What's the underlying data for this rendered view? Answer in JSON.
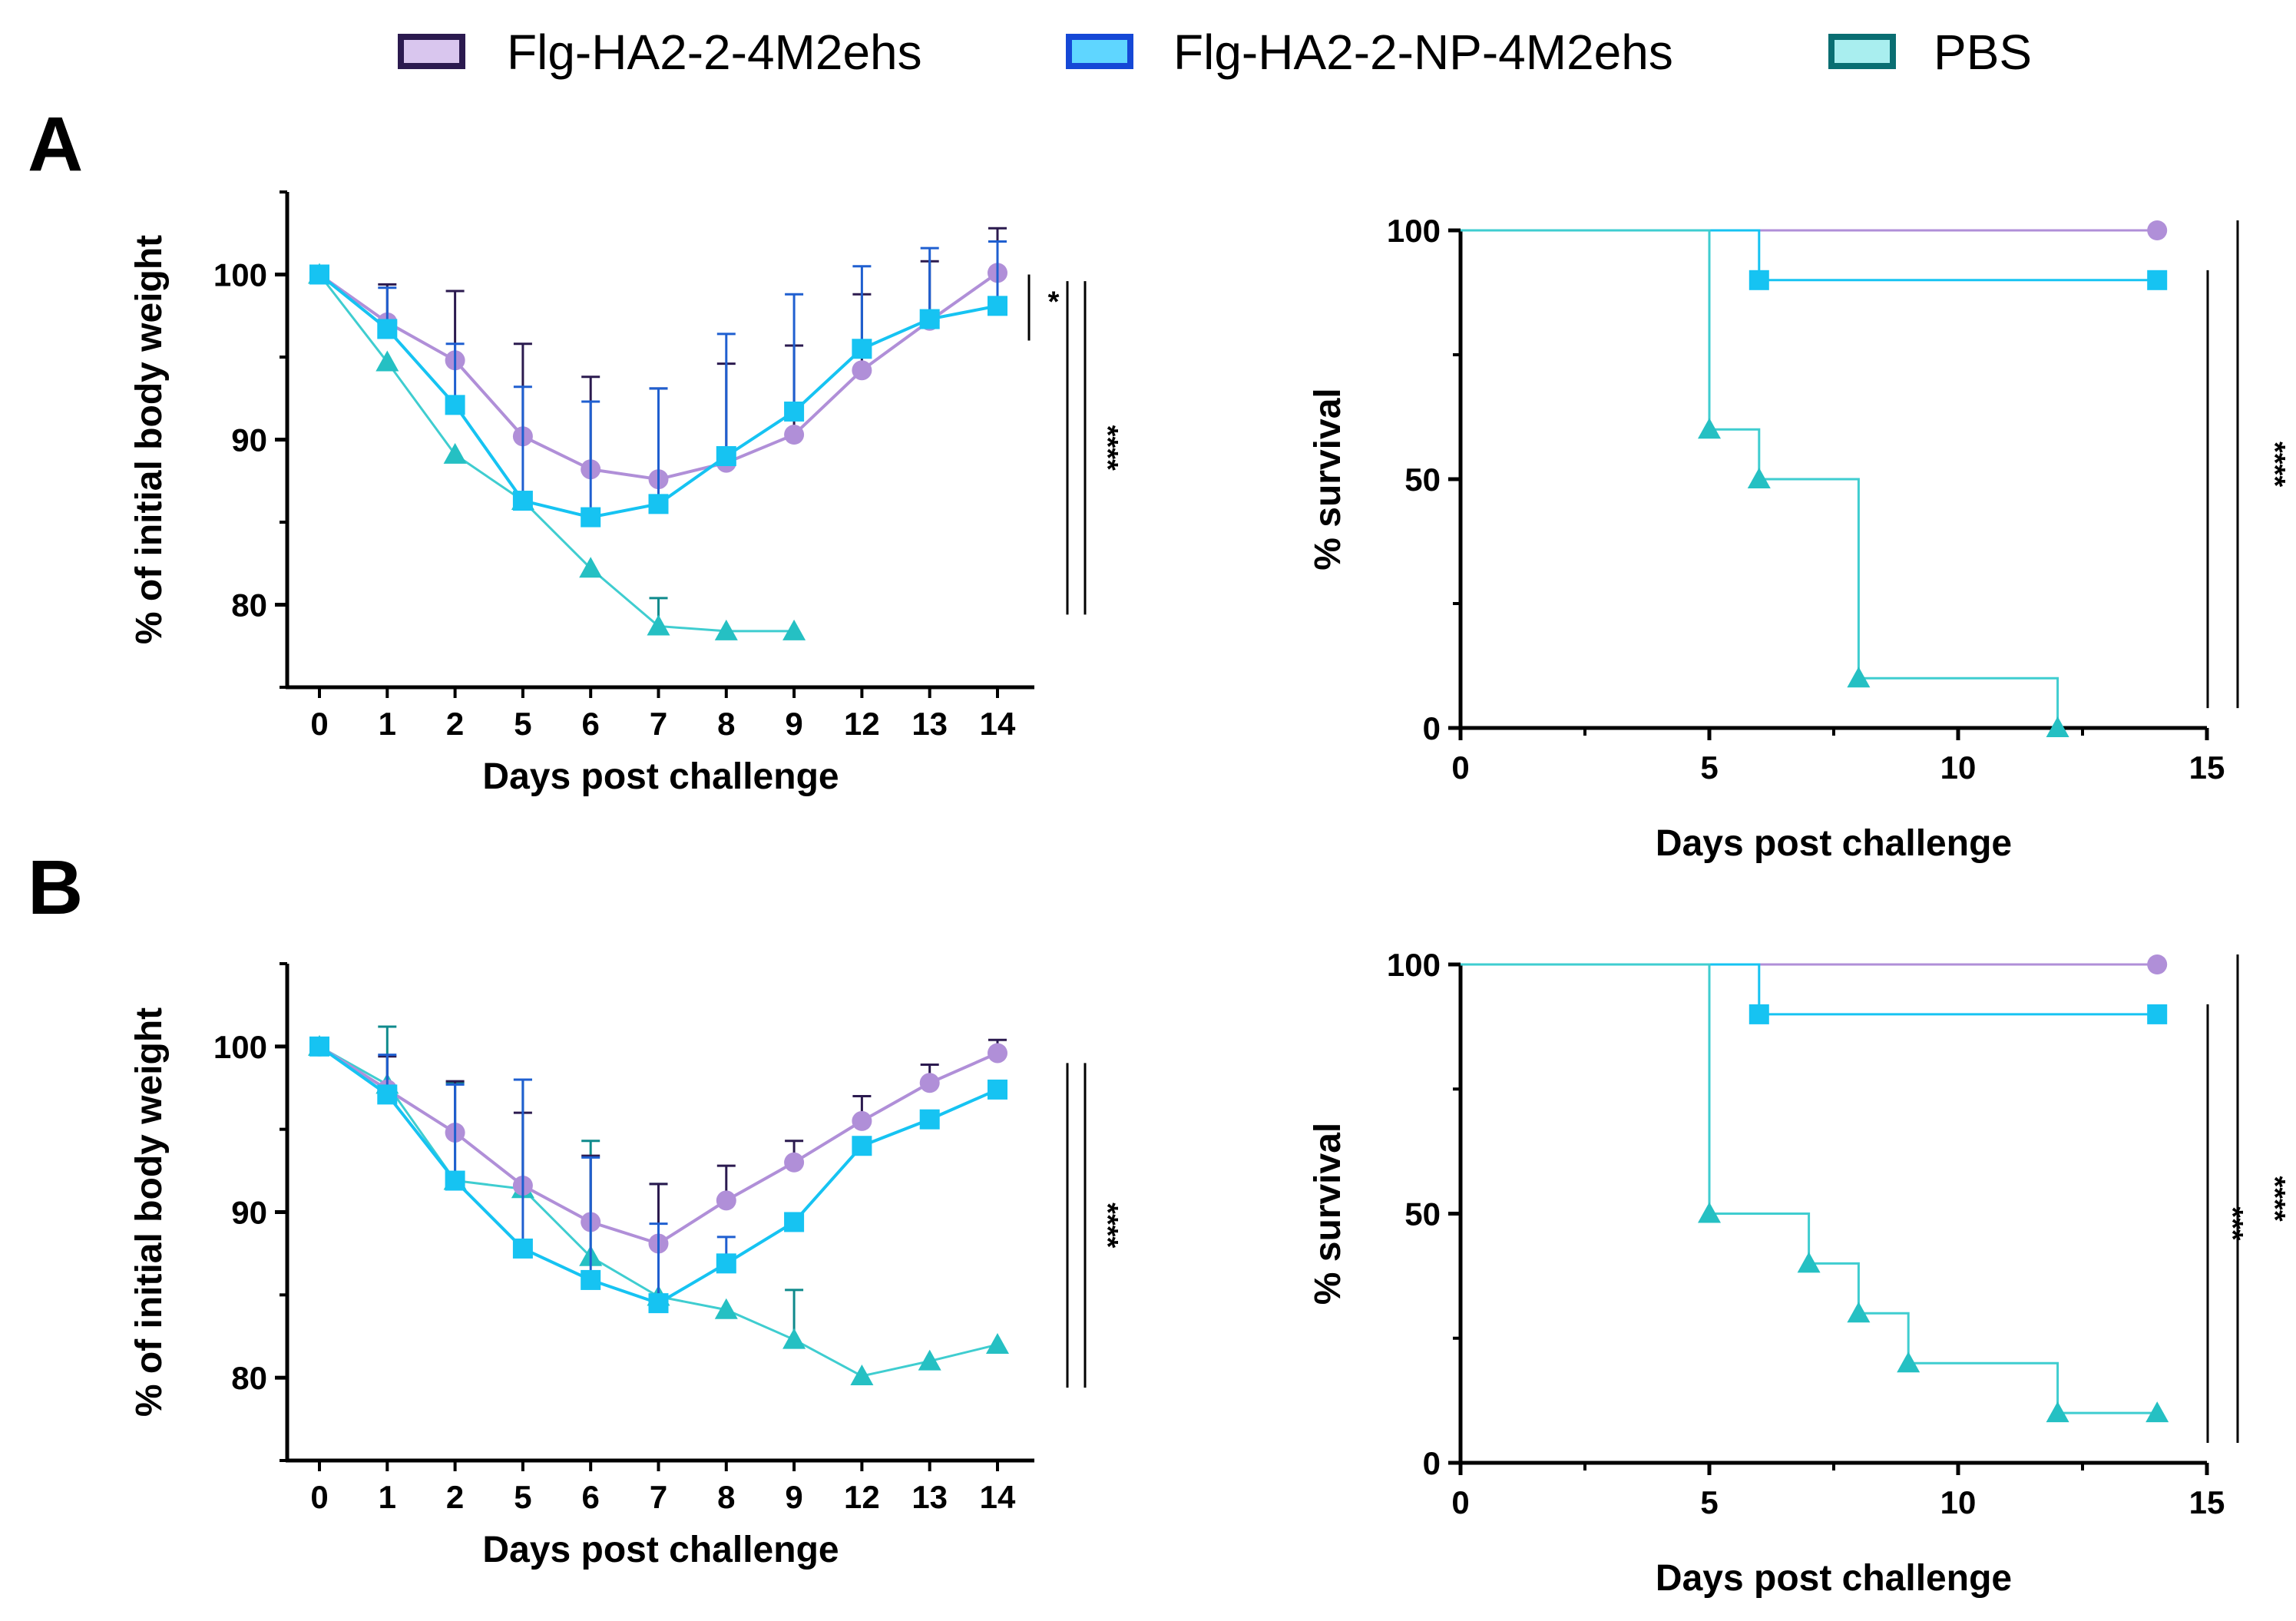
{
  "legend": [
    {
      "label": "Flg-HA2-2-4M2ehs",
      "series": "ha2"
    },
    {
      "label": "Flg-HA2-2-NP-4M2ehs",
      "series": "np"
    },
    {
      "label": "PBS",
      "series": "pbs"
    }
  ],
  "colors": {
    "ha2_line": "#b08fd8",
    "ha2_marker": "#b08fd8",
    "ha2_err": "#2b1a4f",
    "ha2_legend_fill": "#d9c6ee",
    "ha2_legend_border": "#2b1a4f",
    "np_line": "#16c3f2",
    "np_marker": "#16c3f2",
    "np_err": "#1f5fd0",
    "np_legend_fill": "#5fd6ff",
    "np_legend_border": "#1548d6",
    "pbs_line": "#3fcdd0",
    "pbs_marker": "#25c0c3",
    "pbs_err": "#0f8a8c",
    "pbs_legend_fill": "#a9eeef",
    "pbs_legend_border": "#0a6e72"
  },
  "panels": [
    {
      "letter": "A"
    },
    {
      "letter": "B"
    }
  ],
  "chart_data": [
    {
      "id": "A-weight",
      "panel": "A",
      "type": "line",
      "xlabel": "Days post challenge",
      "ylabel": "% of initial body weight",
      "ylim": [
        75,
        105
      ],
      "yticks": [
        80,
        90,
        100
      ],
      "categories": [
        "0",
        "1",
        "2",
        "5",
        "6",
        "7",
        "8",
        "9",
        "12",
        "13",
        "14"
      ],
      "series": [
        {
          "key": "ha2",
          "name": "Flg-HA2-2-4M2ehs",
          "marker": "circle",
          "values": [
            100,
            97.1,
            94.8,
            90.2,
            88.2,
            87.6,
            88.6,
            90.3,
            94.2,
            97.2,
            100.1
          ],
          "errors": [
            0,
            2.3,
            4.2,
            5.6,
            5.6,
            5.5,
            6.0,
            5.4,
            4.6,
            3.6,
            2.7
          ]
        },
        {
          "key": "np",
          "name": "Flg-HA2-2-NP-4M2ehs",
          "marker": "square",
          "values": [
            100,
            96.7,
            92.1,
            86.3,
            85.3,
            86.1,
            89.0,
            91.7,
            95.5,
            97.3,
            98.1
          ],
          "errors": [
            0,
            2.5,
            3.7,
            6.9,
            7.0,
            7.0,
            7.4,
            7.1,
            5.0,
            4.3,
            3.9
          ]
        },
        {
          "key": "pbs",
          "name": "PBS",
          "marker": "triangle",
          "values": [
            100,
            94.7,
            89.1,
            86.3,
            82.2,
            78.7,
            78.4,
            78.4,
            null,
            null,
            null
          ],
          "errors": [
            0,
            0,
            0,
            0,
            0,
            1.7,
            0,
            0,
            0,
            0,
            0
          ]
        }
      ],
      "significance": [
        {
          "label": "*",
          "from": 100,
          "to": 96
        },
        {
          "label": "****",
          "from": 99.6,
          "to": 79.4
        },
        {
          "label": "",
          "from": 99.6,
          "to": 79.4
        }
      ]
    },
    {
      "id": "A-survival",
      "panel": "A",
      "type": "line",
      "step": true,
      "xlabel": "Days post challenge",
      "ylabel": "% survival",
      "xlim": [
        0,
        15
      ],
      "ylim": [
        0,
        100
      ],
      "xticks": [
        0,
        5,
        10,
        15
      ],
      "yticks": [
        0,
        50,
        100
      ],
      "series": [
        {
          "key": "ha2",
          "name": "Flg-HA2-2-4M2ehs",
          "marker": "circle",
          "steps": [
            [
              0,
              100
            ],
            [
              14,
              100
            ]
          ],
          "markers": [
            [
              14,
              100
            ]
          ]
        },
        {
          "key": "np",
          "name": "Flg-HA2-2-NP-4M2ehs",
          "marker": "square",
          "steps": [
            [
              0,
              100
            ],
            [
              6,
              90
            ],
            [
              14,
              90
            ]
          ],
          "markers": [
            [
              6,
              90
            ],
            [
              14,
              90
            ]
          ]
        },
        {
          "key": "pbs",
          "name": "PBS",
          "marker": "triangle",
          "steps": [
            [
              0,
              100
            ],
            [
              5,
              60
            ],
            [
              6,
              50
            ],
            [
              8,
              10
            ],
            [
              12,
              0
            ]
          ],
          "markers": [
            [
              5,
              60
            ],
            [
              6,
              50
            ],
            [
              8,
              10
            ],
            [
              12,
              0
            ]
          ]
        }
      ],
      "significance": [
        {
          "label": "",
          "from": 92,
          "to": 4
        },
        {
          "label": "****",
          "from": 102,
          "to": 4
        }
      ]
    },
    {
      "id": "B-weight",
      "panel": "B",
      "type": "line",
      "xlabel": "Days post challenge",
      "ylabel": "% of initial body weight",
      "ylim": [
        75,
        105
      ],
      "yticks": [
        80,
        90,
        100
      ],
      "categories": [
        "0",
        "1",
        "2",
        "5",
        "6",
        "7",
        "8",
        "9",
        "12",
        "13",
        "14"
      ],
      "series": [
        {
          "key": "ha2",
          "name": "Flg-HA2-2-4M2ehs",
          "marker": "circle",
          "values": [
            100,
            97.4,
            94.8,
            91.6,
            89.4,
            88.1,
            90.7,
            93.0,
            95.5,
            97.8,
            99.6
          ],
          "errors": [
            0,
            2.0,
            3.1,
            4.4,
            4.0,
            3.6,
            2.1,
            1.3,
            1.5,
            1.1,
            0.8
          ]
        },
        {
          "key": "np",
          "name": "Flg-HA2-2-NP-4M2ehs",
          "marker": "square",
          "values": [
            100,
            97.1,
            91.9,
            87.8,
            85.9,
            84.5,
            86.9,
            89.4,
            94.0,
            95.6,
            97.4
          ],
          "errors": [
            0,
            2.4,
            5.8,
            10.2,
            7.4,
            4.8,
            1.6,
            0,
            0,
            0,
            0
          ]
        },
        {
          "key": "pbs",
          "name": "PBS",
          "marker": "triangle",
          "values": [
            100,
            97.7,
            91.9,
            91.4,
            87.3,
            84.9,
            84.1,
            82.3,
            80.1,
            81.0,
            82.0
          ],
          "errors": [
            0,
            3.5,
            5.9,
            6.6,
            7.0,
            6.8,
            0,
            3.0,
            0,
            0,
            0
          ]
        }
      ],
      "significance": [
        {
          "label": "****",
          "from": 99,
          "to": 79.4
        },
        {
          "label": "",
          "from": 99,
          "to": 79.4
        }
      ]
    },
    {
      "id": "B-survival",
      "panel": "B",
      "type": "line",
      "step": true,
      "xlabel": "Days post challenge",
      "ylabel": "% survival",
      "xlim": [
        0,
        15
      ],
      "ylim": [
        0,
        100
      ],
      "xticks": [
        0,
        5,
        10,
        15
      ],
      "yticks": [
        0,
        50,
        100
      ],
      "series": [
        {
          "key": "ha2",
          "name": "Flg-HA2-2-4M2ehs",
          "marker": "circle",
          "steps": [
            [
              0,
              100
            ],
            [
              14,
              100
            ]
          ],
          "markers": [
            [
              14,
              100
            ]
          ]
        },
        {
          "key": "np",
          "name": "Flg-HA2-2-NP-4M2ehs",
          "marker": "square",
          "steps": [
            [
              0,
              100
            ],
            [
              6,
              90
            ],
            [
              14,
              90
            ]
          ],
          "markers": [
            [
              6,
              90
            ],
            [
              14,
              90
            ]
          ]
        },
        {
          "key": "pbs",
          "name": "PBS",
          "marker": "triangle",
          "steps": [
            [
              0,
              100
            ],
            [
              5,
              50
            ],
            [
              7,
              40
            ],
            [
              8,
              30
            ],
            [
              9,
              20
            ],
            [
              12,
              10
            ],
            [
              14,
              10
            ]
          ],
          "markers": [
            [
              5,
              50
            ],
            [
              7,
              40
            ],
            [
              8,
              30
            ],
            [
              9,
              20
            ],
            [
              12,
              10
            ],
            [
              14,
              10
            ]
          ]
        }
      ],
      "significance": [
        {
          "label": "***",
          "from": 92,
          "to": 4
        },
        {
          "label": "****",
          "from": 102,
          "to": 4
        }
      ]
    }
  ]
}
